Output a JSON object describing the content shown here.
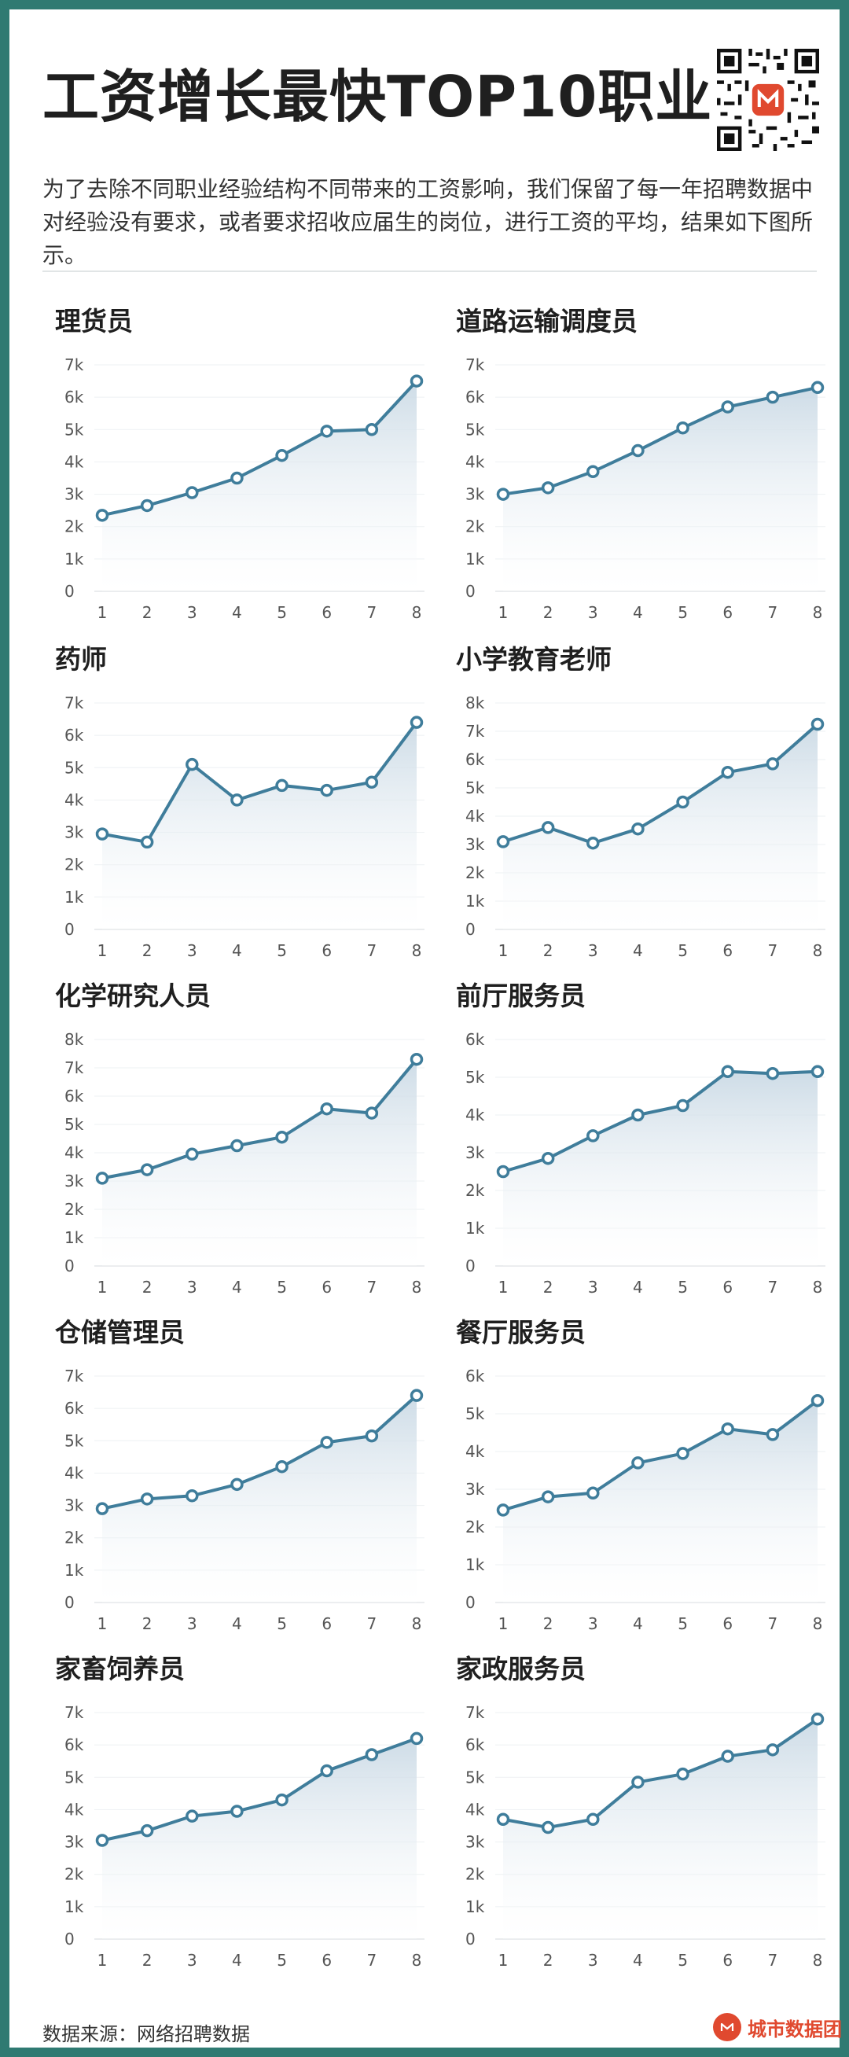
{
  "header": {
    "title": "工资增长最快TOP10职业",
    "description": "为了去除不同职业经验结构不同带来的工资影响，我们保留了每一年招聘数据中对经验没有要求，或者要求招收应届生的岗位，进行工资的平均，结果如下图所示。"
  },
  "footer": {
    "source": "数据来源：网络招聘数据",
    "brand": "城市数据团"
  },
  "colors": {
    "frame": "#2f7a72",
    "line": "#3f7d9b",
    "area": "#dbe6ee",
    "brand": "#e0492f"
  },
  "icons": [
    "qr-code-icon",
    "brand-logo-icon"
  ],
  "chart_data": [
    {
      "type": "area",
      "title": "理货员",
      "x": [
        1,
        2,
        3,
        4,
        5,
        6,
        7,
        8
      ],
      "values": [
        2350,
        2650,
        3050,
        3500,
        4200,
        4950,
        5000,
        6500
      ],
      "ylim": [
        0,
        7000
      ],
      "yticks": [
        "0",
        "1k",
        "2k",
        "3k",
        "4k",
        "5k",
        "6k",
        "7k"
      ]
    },
    {
      "type": "area",
      "title": "道路运输调度员",
      "x": [
        1,
        2,
        3,
        4,
        5,
        6,
        7,
        8
      ],
      "values": [
        3000,
        3200,
        3700,
        4350,
        5050,
        5700,
        6000,
        6300
      ],
      "ylim": [
        0,
        7000
      ],
      "yticks": [
        "0",
        "1k",
        "2k",
        "3k",
        "4k",
        "5k",
        "6k",
        "7k"
      ]
    },
    {
      "type": "area",
      "title": "药师",
      "x": [
        1,
        2,
        3,
        4,
        5,
        6,
        7,
        8
      ],
      "values": [
        2950,
        2700,
        5100,
        4000,
        4450,
        4300,
        4550,
        6400
      ],
      "ylim": [
        0,
        7000
      ],
      "yticks": [
        "0",
        "1k",
        "2k",
        "3k",
        "4k",
        "5k",
        "6k",
        "7k"
      ]
    },
    {
      "type": "area",
      "title": "小学教育老师",
      "x": [
        1,
        2,
        3,
        4,
        5,
        6,
        7,
        8
      ],
      "values": [
        3100,
        3600,
        3050,
        3550,
        4500,
        5550,
        5850,
        7250
      ],
      "ylim": [
        0,
        8000
      ],
      "yticks": [
        "0",
        "1k",
        "2k",
        "3k",
        "4k",
        "5k",
        "6k",
        "7k",
        "8k"
      ]
    },
    {
      "type": "area",
      "title": "化学研究人员",
      "x": [
        1,
        2,
        3,
        4,
        5,
        6,
        7,
        8
      ],
      "values": [
        3100,
        3400,
        3950,
        4250,
        4550,
        5550,
        5400,
        7300
      ],
      "ylim": [
        0,
        8000
      ],
      "yticks": [
        "0",
        "1k",
        "2k",
        "3k",
        "4k",
        "5k",
        "6k",
        "7k",
        "8k"
      ]
    },
    {
      "type": "area",
      "title": "前厅服务员",
      "x": [
        1,
        2,
        3,
        4,
        5,
        6,
        7,
        8
      ],
      "values": [
        2500,
        2850,
        3450,
        4000,
        4250,
        5150,
        5100,
        5150
      ],
      "ylim": [
        0,
        6000
      ],
      "yticks": [
        "0",
        "1k",
        "2k",
        "3k",
        "4k",
        "5k",
        "6k"
      ]
    },
    {
      "type": "area",
      "title": "仓储管理员",
      "x": [
        1,
        2,
        3,
        4,
        5,
        6,
        7,
        8
      ],
      "values": [
        2900,
        3200,
        3300,
        3650,
        4200,
        4950,
        5150,
        6400
      ],
      "ylim": [
        0,
        7000
      ],
      "yticks": [
        "0",
        "1k",
        "2k",
        "3k",
        "4k",
        "5k",
        "6k",
        "7k"
      ]
    },
    {
      "type": "area",
      "title": "餐厅服务员",
      "x": [
        1,
        2,
        3,
        4,
        5,
        6,
        7,
        8
      ],
      "values": [
        2450,
        2800,
        2900,
        3700,
        3950,
        4600,
        4450,
        5350
      ],
      "ylim": [
        0,
        6000
      ],
      "yticks": [
        "0",
        "1k",
        "2k",
        "3k",
        "4k",
        "5k",
        "6k"
      ]
    },
    {
      "type": "area",
      "title": "家畜饲养员",
      "x": [
        1,
        2,
        3,
        4,
        5,
        6,
        7,
        8
      ],
      "values": [
        3050,
        3350,
        3800,
        3950,
        4300,
        5200,
        5700,
        6200
      ],
      "ylim": [
        0,
        7000
      ],
      "yticks": [
        "0",
        "1k",
        "2k",
        "3k",
        "4k",
        "5k",
        "6k",
        "7k"
      ]
    },
    {
      "type": "area",
      "title": "家政服务员",
      "x": [
        1,
        2,
        3,
        4,
        5,
        6,
        7,
        8
      ],
      "values": [
        3700,
        3450,
        3700,
        4850,
        5100,
        5650,
        5850,
        6800
      ],
      "ylim": [
        0,
        7000
      ],
      "yticks": [
        "0",
        "1k",
        "2k",
        "3k",
        "4k",
        "5k",
        "6k",
        "7k"
      ]
    }
  ]
}
